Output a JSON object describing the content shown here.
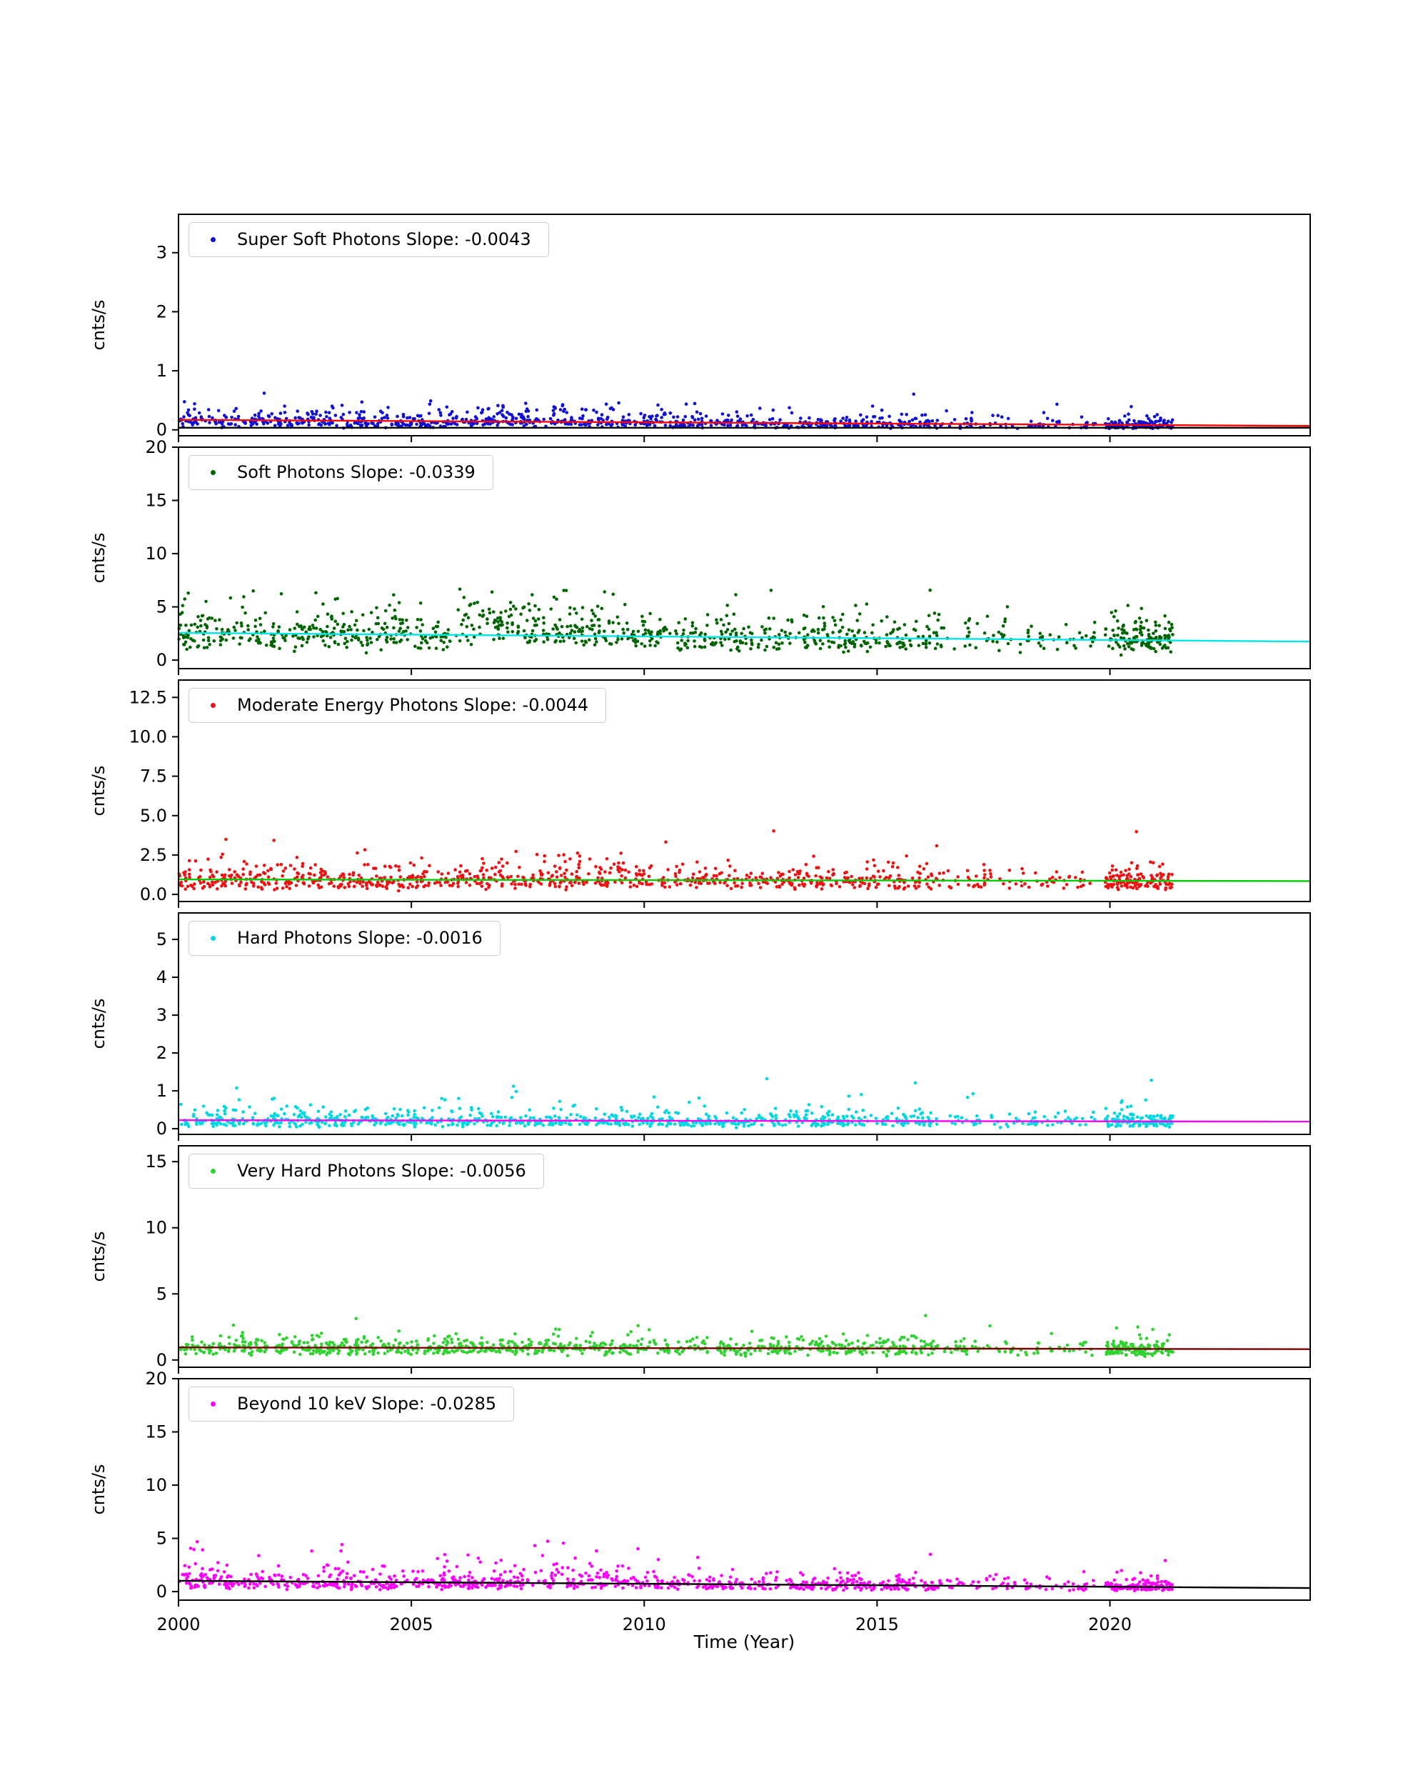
{
  "chart_data": {
    "type": "scatter",
    "title": "",
    "description": "Six stacked time-series scatter panels of photon count rates (cnts/s) versus year, each with a linear trend fit line",
    "ylabel": "cnts/s",
    "grid": false,
    "legend_position": "upper-left",
    "x_axis": {
      "label": "Time (Year)",
      "lim": [
        2000,
        2024.3
      ],
      "ticks": [
        2000,
        2005,
        2010,
        2015,
        2020
      ],
      "data_segments": [
        [
          2000,
          2010.6,
          0.54
        ],
        [
          2010.6,
          2016.3,
          0.26
        ],
        [
          2016.3,
          2019.7,
          0.07
        ],
        [
          2019.9,
          2021.35,
          0.13
        ]
      ]
    },
    "panels": [
      {
        "key": "super-soft-photons",
        "legend": "Super Soft Photons Slope: -0.0043",
        "slope": -0.0043,
        "marker_color": "#0f0fd6",
        "ylim": [
          -0.1,
          3.65
        ],
        "yticks": [
          0,
          1,
          2,
          3
        ],
        "ytick_decimals": 0,
        "trend_lines": [
          {
            "color": "#ff0000",
            "y_start": 0.17,
            "y_end": 0.067
          },
          {
            "color": "#000000",
            "y_start": 0.035,
            "y_end": 0.035
          }
        ],
        "scatter": {
          "seed": 101,
          "n": 1000,
          "sigma": 0.55,
          "bump": {
            "x0": 2006.5,
            "x1": 2010.5,
            "mult": 1.25
          },
          "outlier_frac": 0.008,
          "outlier_mult": 3.0,
          "clip_max": 1.0
        }
      },
      {
        "key": "soft-photons",
        "legend": "Soft Photons Slope: -0.0339",
        "slope": -0.0339,
        "marker_color": "#006400",
        "ylim": [
          -0.8,
          20
        ],
        "yticks": [
          0,
          5,
          10,
          15,
          20
        ],
        "ytick_decimals": 0,
        "trend_lines": [
          {
            "color": "#00e5e5",
            "y_start": 2.56,
            "y_end": 1.74
          }
        ],
        "scatter": {
          "seed": 102,
          "n": 1050,
          "sigma": 0.4,
          "bump": {
            "x0": 2006,
            "x1": 2009.6,
            "mult": 1.35
          },
          "outlier_frac": 0.012,
          "outlier_mult": 2.0,
          "clip_max": 6.8
        }
      },
      {
        "key": "moderate-energy-photons",
        "legend": "Moderate Energy Photons Slope: -0.0044",
        "slope": -0.0044,
        "marker_color": "#ee1111",
        "ylim": [
          -0.45,
          13.6
        ],
        "yticks": [
          0,
          2.5,
          5,
          7.5,
          10,
          12.5
        ],
        "ytick_decimals": 1,
        "trend_lines": [
          {
            "color": "#00cc00",
            "y_start": 0.95,
            "y_end": 0.845
          }
        ],
        "scatter": {
          "seed": 103,
          "n": 1000,
          "sigma": 0.45,
          "bump": {
            "x0": 2006,
            "x1": 2010,
            "mult": 1.15
          },
          "outlier_frac": 0.01,
          "outlier_mult": 2.8,
          "clip_max": 4.3
        }
      },
      {
        "key": "hard-photons",
        "legend": "Hard Photons Slope: -0.0016",
        "slope": -0.0016,
        "marker_color": "#00d9e0",
        "ylim": [
          -0.15,
          5.7
        ],
        "yticks": [
          0,
          1,
          2,
          3,
          4,
          5
        ],
        "ytick_decimals": 0,
        "trend_lines": [
          {
            "color": "#ff00ff",
            "y_start": 0.225,
            "y_end": 0.187
          }
        ],
        "scatter": {
          "seed": 104,
          "n": 1000,
          "sigma": 0.55,
          "outlier_frac": 0.01,
          "outlier_mult": 3.2,
          "clip_max": 1.5
        }
      },
      {
        "key": "very-hard-photons",
        "legend": "Very Hard Photons Slope: -0.0056",
        "slope": -0.0056,
        "marker_color": "#2fd32f",
        "ylim": [
          -0.55,
          16.2
        ],
        "yticks": [
          0,
          5,
          10,
          15
        ],
        "ytick_decimals": 0,
        "trend_lines": [
          {
            "color": "#7a0000",
            "y_start": 0.95,
            "y_end": 0.816
          }
        ],
        "scatter": {
          "seed": 105,
          "n": 1000,
          "sigma": 0.38,
          "outlier_frac": 0.006,
          "outlier_mult": 2.6,
          "clip_max": 3.6
        }
      },
      {
        "key": "beyond-10-kev",
        "legend": "Beyond 10 keV Slope: -0.0285",
        "slope": -0.0285,
        "marker_color": "#ff00ff",
        "ylim": [
          -0.8,
          20
        ],
        "yticks": [
          0,
          5,
          10,
          15,
          20
        ],
        "ytick_decimals": 0,
        "trend_lines": [
          {
            "color": "#000000",
            "y_start": 1.02,
            "y_end": 0.335
          }
        ],
        "scatter": {
          "seed": 106,
          "n": 1000,
          "sigma": 0.6,
          "bump": {
            "x0": 2007.6,
            "x1": 2009.9,
            "mult": 1.5
          },
          "outlier_frac": 0.015,
          "outlier_mult": 2.6,
          "clip_max": 4.8
        }
      }
    ]
  }
}
